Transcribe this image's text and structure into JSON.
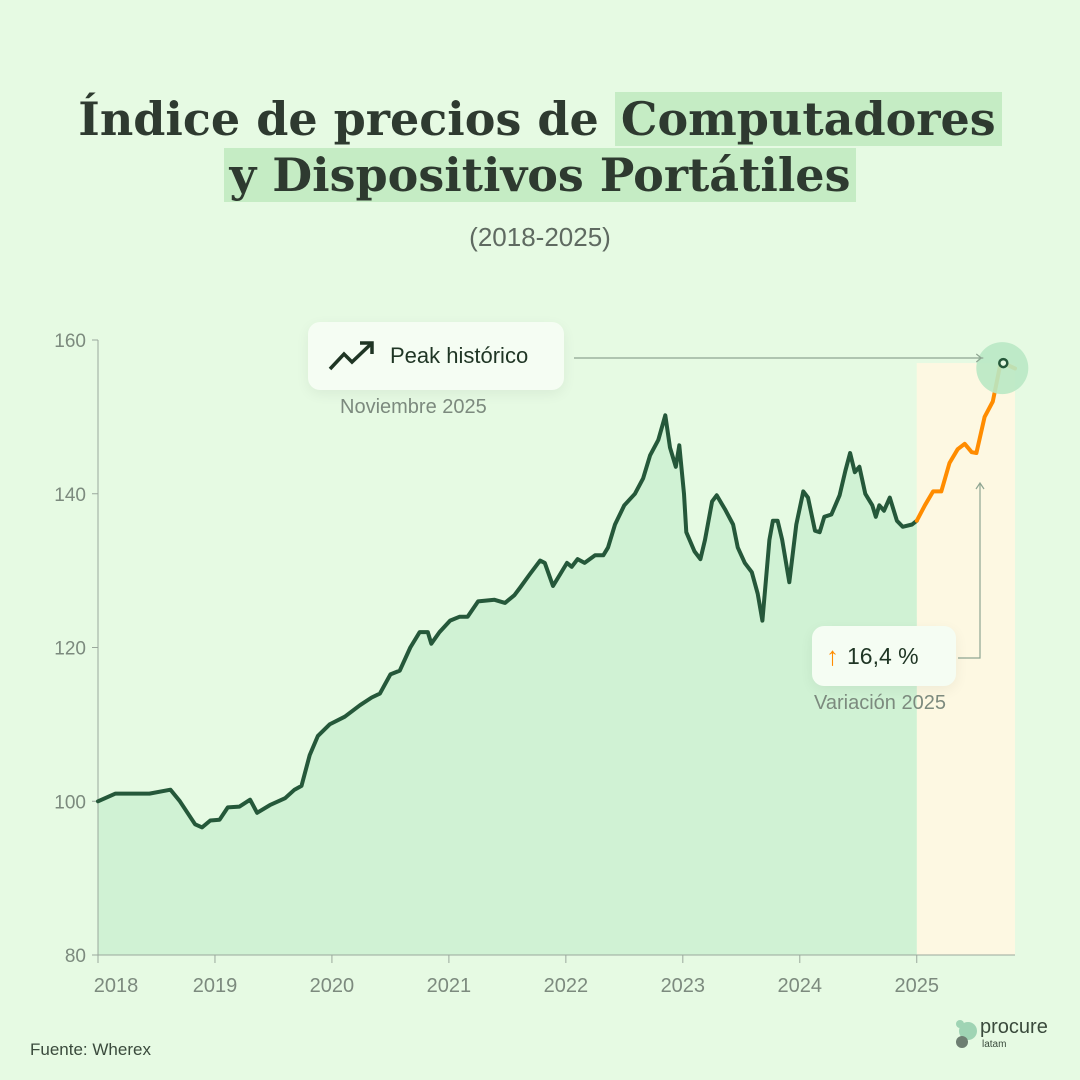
{
  "title": {
    "line1_plain": "Índice de precios de ",
    "line1_hl": "Computadores",
    "line2_hl": "y Dispositivos Portátiles",
    "subtitle": "(2018-2025)"
  },
  "annotations": {
    "peak_label": "Peak histórico",
    "peak_caption": "Noviembre 2025",
    "variation_value": "16,4 %",
    "variation_caption": "Variación 2025"
  },
  "source": "Fuente: Wherex",
  "logo": {
    "name": "procure",
    "sub": "latam"
  },
  "colors": {
    "line": "#25583a",
    "highlight": "#ff8c00",
    "fill": "#d0f2d4",
    "highlight_fill": "#fdf8e2"
  },
  "chart_data": {
    "type": "area",
    "title": "Índice de precios de Computadores y Dispositivos Portátiles (2018-2025)",
    "xlabel": "",
    "ylabel": "",
    "ylim": [
      80,
      160
    ],
    "xlim": [
      2018,
      2025.84
    ],
    "yticks": [
      "80",
      "100",
      "120",
      "140",
      "160"
    ],
    "xticks": [
      "2018",
      "2019",
      "2020",
      "2021",
      "2022",
      "2023",
      "2024",
      "2025"
    ],
    "highlight_from": 2025,
    "series": [
      {
        "name": "Índice",
        "points": [
          [
            2018.0,
            100
          ],
          [
            2018.15,
            101
          ],
          [
            2018.44,
            101
          ],
          [
            2018.62,
            101.5
          ],
          [
            2018.7,
            100
          ],
          [
            2018.83,
            97
          ],
          [
            2018.89,
            96.6
          ],
          [
            2018.96,
            97.5
          ],
          [
            2019.04,
            97.6
          ],
          [
            2019.11,
            99.2
          ],
          [
            2019.21,
            99.3
          ],
          [
            2019.3,
            100.2
          ],
          [
            2019.36,
            98.5
          ],
          [
            2019.47,
            99.5
          ],
          [
            2019.6,
            100.4
          ],
          [
            2019.68,
            101.5
          ],
          [
            2019.74,
            102
          ],
          [
            2019.81,
            106
          ],
          [
            2019.88,
            108.5
          ],
          [
            2019.98,
            110
          ],
          [
            2020.11,
            111
          ],
          [
            2020.24,
            112.5
          ],
          [
            2020.34,
            113.5
          ],
          [
            2020.41,
            114
          ],
          [
            2020.5,
            116.5
          ],
          [
            2020.58,
            117
          ],
          [
            2020.67,
            120
          ],
          [
            2020.75,
            122
          ],
          [
            2020.82,
            122
          ],
          [
            2020.85,
            120.5
          ],
          [
            2020.92,
            122
          ],
          [
            2021.01,
            123.5
          ],
          [
            2021.09,
            124
          ],
          [
            2021.16,
            124
          ],
          [
            2021.25,
            126
          ],
          [
            2021.39,
            126.2
          ],
          [
            2021.48,
            125.8
          ],
          [
            2021.56,
            126.8
          ],
          [
            2021.61,
            127.8
          ],
          [
            2021.69,
            129.5
          ],
          [
            2021.78,
            131.3
          ],
          [
            2021.82,
            131
          ],
          [
            2021.89,
            128
          ],
          [
            2021.95,
            129.5
          ],
          [
            2022.01,
            131
          ],
          [
            2022.05,
            130.5
          ],
          [
            2022.1,
            131.5
          ],
          [
            2022.16,
            131
          ],
          [
            2022.25,
            132
          ],
          [
            2022.32,
            132
          ],
          [
            2022.36,
            133
          ],
          [
            2022.42,
            136
          ],
          [
            2022.5,
            138.5
          ],
          [
            2022.59,
            140
          ],
          [
            2022.66,
            142
          ],
          [
            2022.72,
            145
          ],
          [
            2022.79,
            147
          ],
          [
            2022.85,
            150.2
          ],
          [
            2022.89,
            146
          ],
          [
            2022.94,
            143.5
          ],
          [
            2022.97,
            146.3
          ],
          [
            2023.01,
            140
          ],
          [
            2023.03,
            135
          ],
          [
            2023.1,
            132.5
          ],
          [
            2023.15,
            131.5
          ],
          [
            2023.19,
            134
          ],
          [
            2023.25,
            139
          ],
          [
            2023.29,
            139.8
          ],
          [
            2023.36,
            138
          ],
          [
            2023.43,
            136
          ],
          [
            2023.47,
            133
          ],
          [
            2023.53,
            131
          ],
          [
            2023.59,
            129.8
          ],
          [
            2023.64,
            127
          ],
          [
            2023.68,
            123.5
          ],
          [
            2023.74,
            134
          ],
          [
            2023.77,
            136.5
          ],
          [
            2023.81,
            136.5
          ],
          [
            2023.85,
            134
          ],
          [
            2023.91,
            128.5
          ],
          [
            2023.97,
            136
          ],
          [
            2024.03,
            140.3
          ],
          [
            2024.07,
            139.5
          ],
          [
            2024.13,
            135.2
          ],
          [
            2024.17,
            135
          ],
          [
            2024.21,
            137
          ],
          [
            2024.27,
            137.3
          ],
          [
            2024.34,
            139.8
          ],
          [
            2024.39,
            143
          ],
          [
            2024.43,
            145.3
          ],
          [
            2024.47,
            142.8
          ],
          [
            2024.51,
            143.5
          ],
          [
            2024.56,
            140
          ],
          [
            2024.62,
            138.5
          ],
          [
            2024.65,
            137
          ],
          [
            2024.68,
            138.5
          ],
          [
            2024.72,
            137.8
          ],
          [
            2024.77,
            139.5
          ],
          [
            2024.83,
            136.5
          ],
          [
            2024.88,
            135.7
          ],
          [
            2024.96,
            136
          ],
          [
            2025.0,
            136.5
          ],
          [
            2025.07,
            138.5
          ],
          [
            2025.14,
            140.3
          ],
          [
            2025.21,
            140.3
          ],
          [
            2025.28,
            144
          ],
          [
            2025.35,
            145.8
          ],
          [
            2025.41,
            146.5
          ],
          [
            2025.47,
            145.4
          ],
          [
            2025.51,
            145.3
          ],
          [
            2025.58,
            150
          ],
          [
            2025.65,
            152
          ],
          [
            2025.71,
            156.5
          ],
          [
            2025.74,
            157
          ],
          [
            2025.84,
            156.3
          ]
        ]
      }
    ],
    "peak": {
      "x": 2025.74,
      "y": 157
    }
  }
}
